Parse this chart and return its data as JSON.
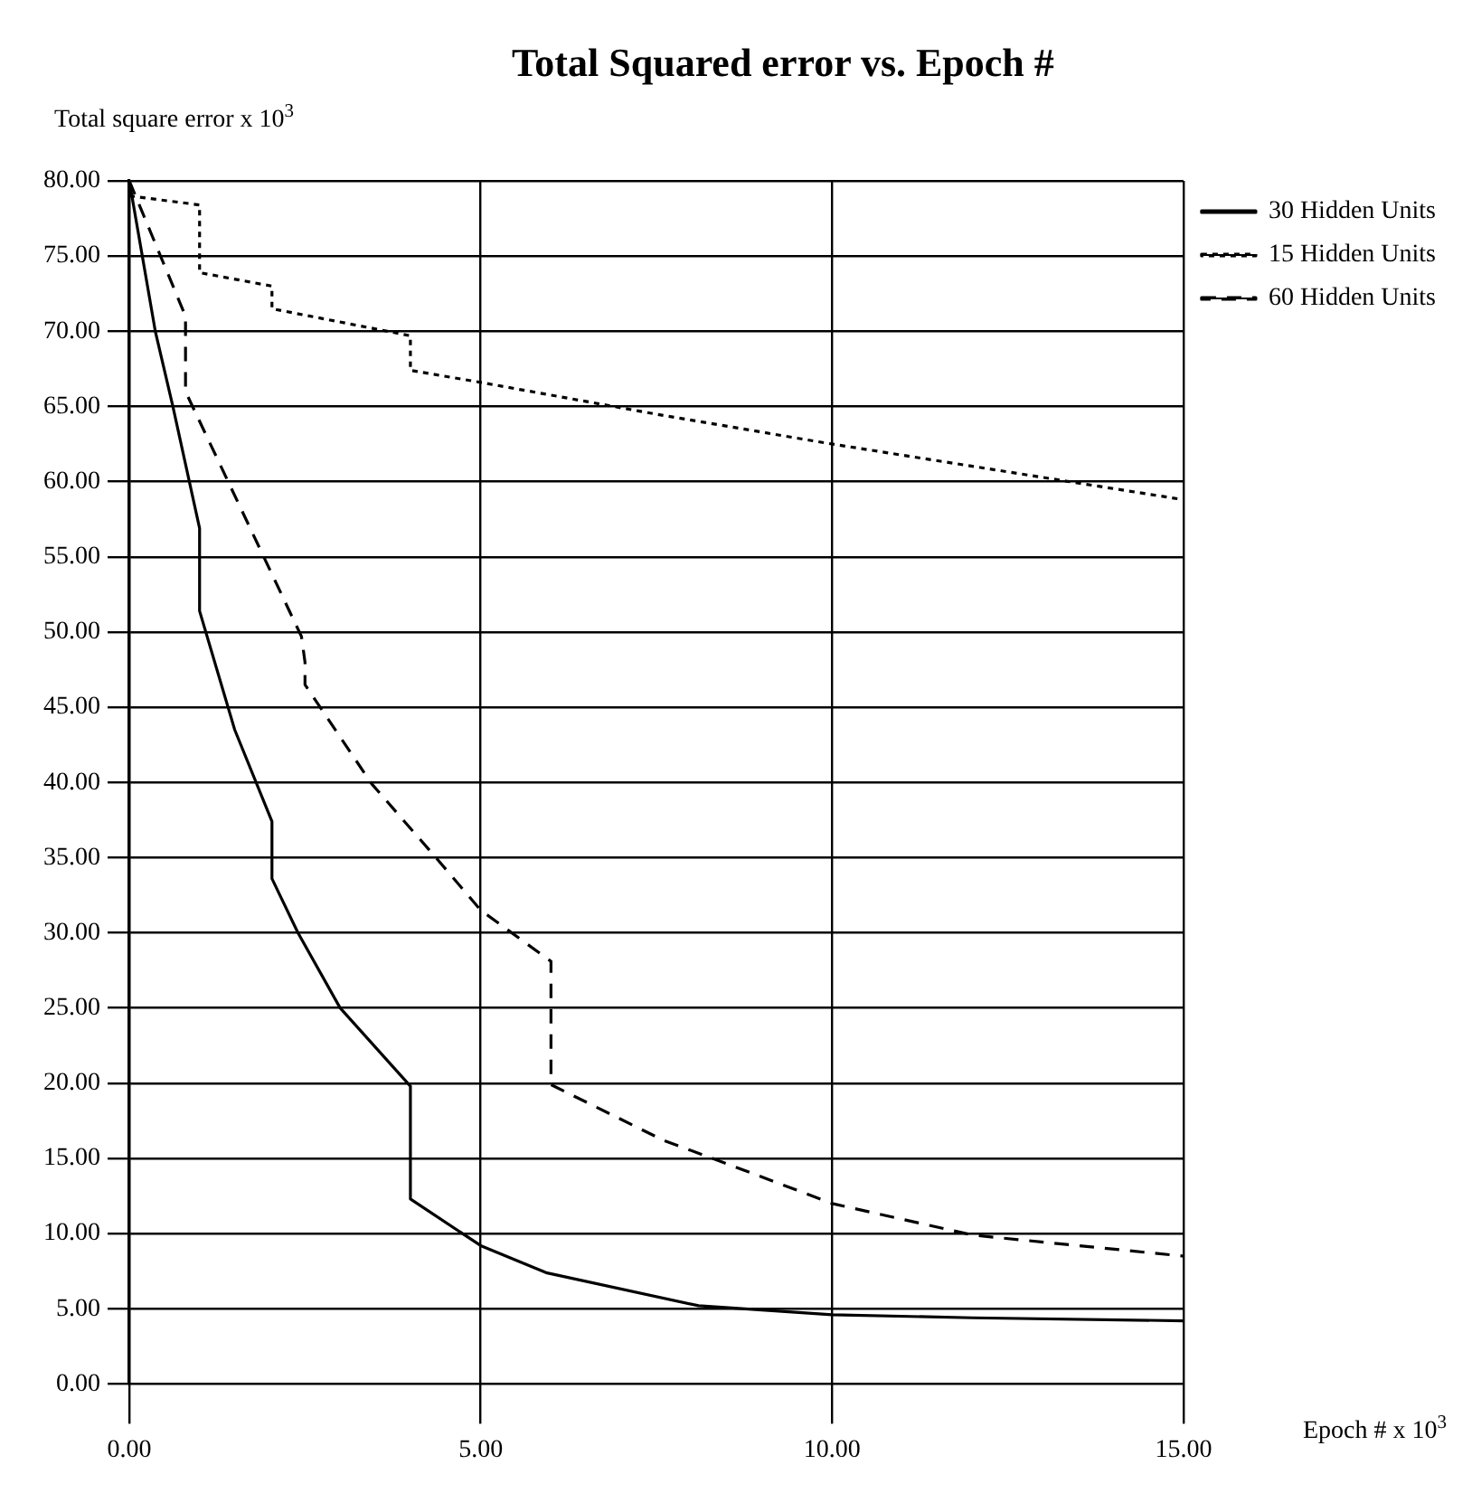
{
  "chart_data": {
    "type": "line",
    "title": "Total Squared error vs. Epoch #",
    "xlabel": "Epoch # x 10$^{3}$",
    "ylabel": "Total square error x 10$^{3}$",
    "xlim": [
      0,
      15
    ],
    "xticks": [
      {
        "value": 0,
        "label": "0.00"
      },
      {
        "value": 5,
        "label": "5.00"
      },
      {
        "value": 10,
        "label": "10.00"
      },
      {
        "value": 15,
        "label": "15.00"
      }
    ],
    "ylim": [
      0,
      80
    ],
    "yticks": [
      {
        "value": 0,
        "label": "0.00"
      },
      {
        "value": 5,
        "label": "5.00"
      },
      {
        "value": 10,
        "label": "10.00"
      },
      {
        "value": 15,
        "label": "15.00"
      },
      {
        "value": 20,
        "label": "20.00"
      },
      {
        "value": 25,
        "label": "25.00"
      },
      {
        "value": 30,
        "label": "30.00"
      },
      {
        "value": 35,
        "label": "35.00"
      },
      {
        "value": 40,
        "label": "40.00"
      },
      {
        "value": 45,
        "label": "45.00"
      },
      {
        "value": 50,
        "label": "50.00"
      },
      {
        "value": 55,
        "label": "55.00"
      },
      {
        "value": 60,
        "label": "60.00"
      },
      {
        "value": 65,
        "label": "65.00"
      },
      {
        "value": 70,
        "label": "70.00"
      },
      {
        "value": 75,
        "label": "75.00"
      },
      {
        "value": 80,
        "label": "80.00"
      }
    ],
    "grid": true,
    "legend": "top right",
    "marker": "none",
    "series": [
      {
        "name": "30 Hidden Units",
        "color": "#000000",
        "line_style": "solid",
        "x": [
          0,
          0.37,
          0.62,
          1.0,
          1.0,
          1.5,
          2.03,
          2.03,
          2.4,
          3.0,
          4.0,
          4.0,
          5.0,
          5.93,
          8.1,
          10,
          12,
          15
        ],
        "values": [
          80,
          70,
          65,
          56.9,
          51.4,
          43.5,
          37.4,
          33.6,
          30,
          25,
          19.8,
          12.3,
          9.2,
          7.4,
          5.2,
          4.6,
          4.4,
          4.2
        ]
      },
      {
        "name": "15 Hidden Units",
        "color": "#000000",
        "line_style": "dotted",
        "x": [
          0,
          1.0,
          1.0,
          2.03,
          2.03,
          4.0,
          4.0,
          5.0,
          7.6,
          10,
          15
        ],
        "values": [
          79,
          78.4,
          73.9,
          73,
          71.5,
          69.7,
          67.4,
          66.6,
          64.4,
          62.5,
          58.8
        ]
      },
      {
        "name": "60 Hidden Units",
        "color": "#000000",
        "line_style": "dashed",
        "x": [
          0,
          0.8,
          0.8,
          0.9,
          2.45,
          2.5,
          2.5,
          3.45,
          4.4,
          5.0,
          6.0,
          6.0,
          7.6,
          8.3,
          10,
          12,
          15
        ],
        "values": [
          80,
          71,
          66,
          65,
          49.7,
          48,
          46.5,
          39.9,
          34.8,
          31.5,
          28.1,
          19.9,
          16.2,
          15,
          12,
          9.9,
          8.5
        ]
      }
    ]
  }
}
